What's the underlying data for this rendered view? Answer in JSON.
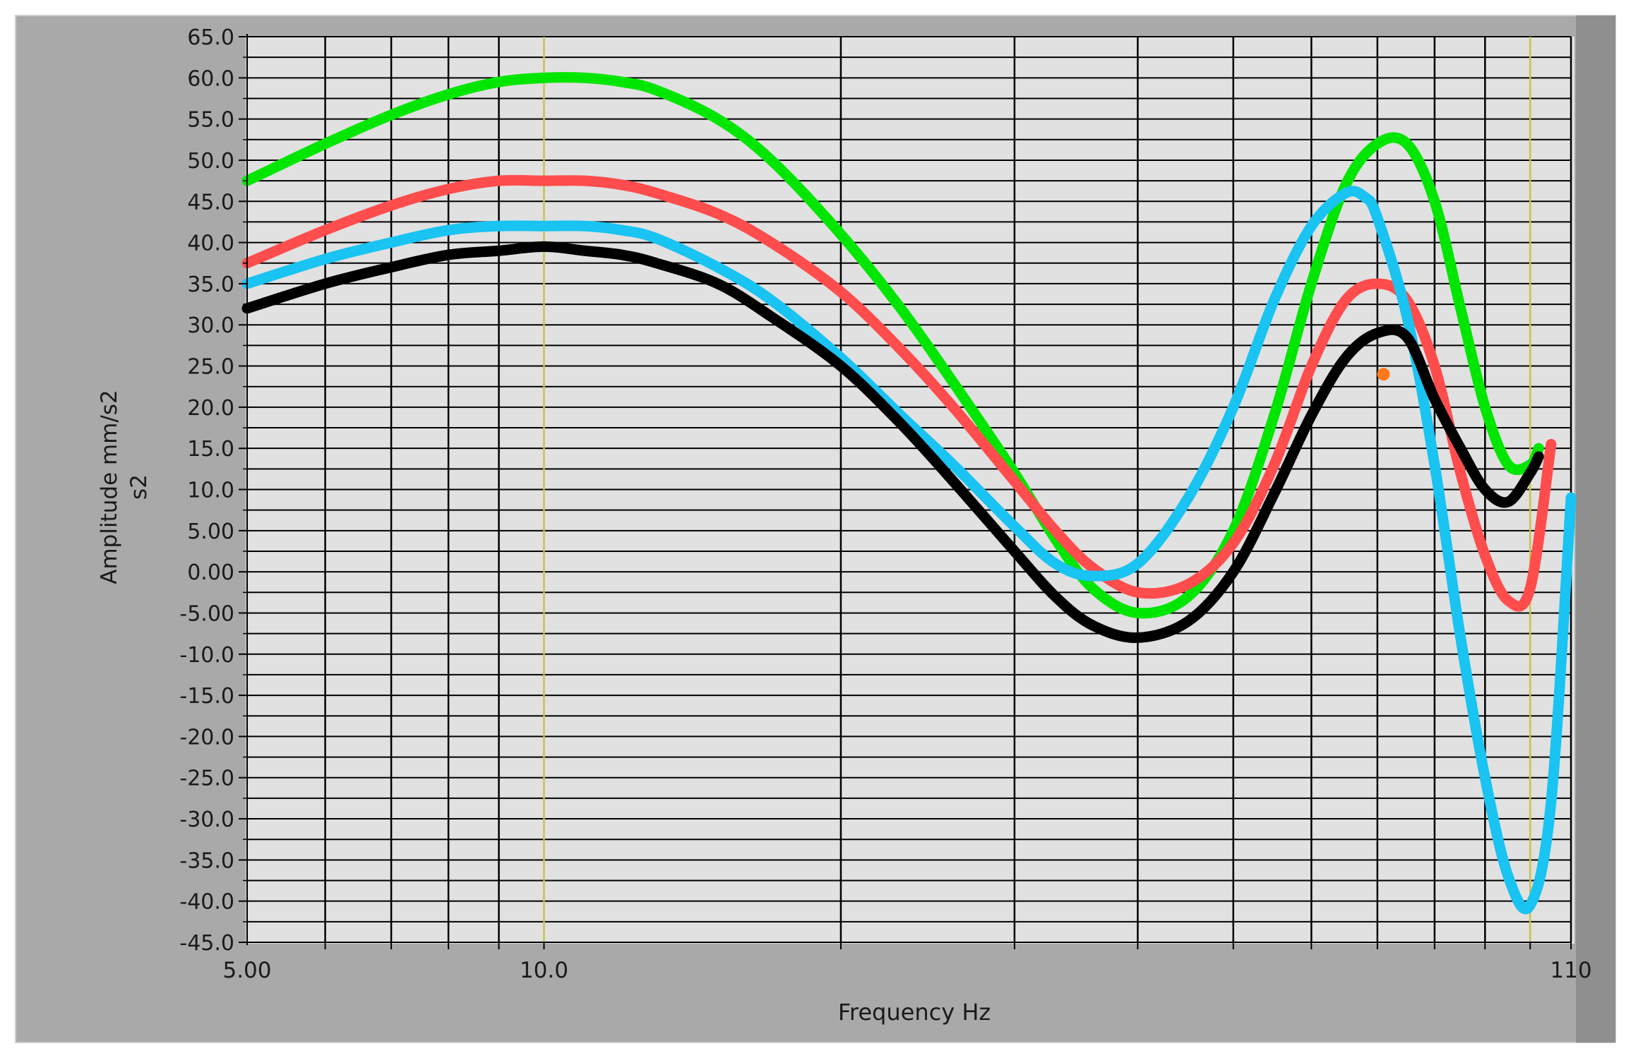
{
  "chart_data": {
    "type": "line",
    "xlabel": "Frequency Hz",
    "ylabel_line1": "Amplitude mm/s2",
    "ylabel_line2": "s2",
    "x_scale": "log",
    "xlim": [
      5,
      110
    ],
    "ylim": [
      -45,
      65
    ],
    "y_ticks": [
      "65.0",
      "60.0",
      "55.0",
      "50.0",
      "45.0",
      "40.0",
      "35.0",
      "30.0",
      "25.0",
      "20.0",
      "15.0",
      "10.0",
      "5.00",
      "0.00",
      "-5.00",
      "-10.0",
      "-15.0",
      "-20.0",
      "-25.0",
      "-30.0",
      "-35.0",
      "-40.0",
      "-45.0"
    ],
    "y_tick_values": [
      65,
      60,
      55,
      50,
      45,
      40,
      35,
      30,
      25,
      20,
      15,
      10,
      5,
      0,
      -5,
      -10,
      -15,
      -20,
      -25,
      -30,
      -35,
      -40,
      -45
    ],
    "x_tick_labels": [
      {
        "value": 5,
        "label": "5.00"
      },
      {
        "value": 10,
        "label": "10.0"
      },
      {
        "value": 110,
        "label": "110"
      }
    ],
    "x_gridlines": [
      6,
      7,
      8,
      9,
      10,
      20,
      30,
      40,
      50,
      60,
      70,
      80,
      90,
      100,
      110
    ],
    "x_highlight_gridlines": [
      10,
      100
    ],
    "grid": true,
    "legend": "none",
    "colors": {
      "plot_bg": "#e1e1e1",
      "frame_bg": "#a9a9a9",
      "grid_major": "#000000",
      "grid_highlight": "#c9c24a",
      "marker": "#ff7a1a"
    },
    "series": [
      {
        "color": "#00e600",
        "x": [
          5,
          6,
          7,
          8,
          9,
          10,
          11,
          12,
          13,
          15,
          17,
          20,
          23,
          26,
          30,
          33,
          36,
          40,
          45,
          50,
          55,
          60,
          65,
          70,
          75,
          80,
          85,
          90,
          95,
          100,
          102
        ],
        "y": [
          47.5,
          52,
          55.5,
          58,
          59.5,
          60,
          60,
          59.5,
          58.5,
          55,
          50,
          41,
          32,
          23,
          12,
          4,
          -2,
          -5,
          -3,
          5,
          19,
          35,
          47,
          52,
          52,
          45,
          32,
          20,
          13,
          13,
          15
        ]
      },
      {
        "color": "#ff4d4d",
        "x": [
          5,
          6,
          7,
          8,
          9,
          10,
          11,
          12,
          13,
          15,
          17,
          20,
          23,
          26,
          30,
          33,
          36,
          40,
          45,
          50,
          55,
          60,
          65,
          70,
          75,
          80,
          85,
          90,
          95,
          100,
          105
        ],
        "y": [
          37.5,
          41.5,
          44.5,
          46.5,
          47.5,
          47.5,
          47.5,
          47,
          46,
          43.5,
          40,
          34,
          27,
          20,
          11,
          5,
          0.5,
          -2.5,
          -1.5,
          3.5,
          13,
          25,
          33,
          35,
          33,
          25,
          12,
          2,
          -3.5,
          -2,
          15.5
        ]
      },
      {
        "color": "#19c3f2",
        "x": [
          5,
          6,
          7,
          8,
          9,
          10,
          11,
          12,
          13,
          15,
          17,
          20,
          23,
          26,
          30,
          33,
          36,
          40,
          45,
          50,
          55,
          60,
          65,
          68,
          70,
          75,
          80,
          85,
          90,
          95,
          100,
          105,
          110
        ],
        "y": [
          35,
          38,
          40,
          41.5,
          42,
          42,
          42,
          41.5,
          40.5,
          37,
          33,
          26,
          19,
          13,
          5.5,
          1,
          -0.5,
          1,
          9,
          20,
          33,
          42,
          46,
          45.5,
          43,
          31,
          13,
          -8,
          -25,
          -37,
          -40.5,
          -28,
          9
        ]
      },
      {
        "color": "#000000",
        "x": [
          5,
          6,
          7,
          8,
          9,
          10,
          11,
          12,
          13,
          15,
          17,
          20,
          23,
          26,
          30,
          33,
          36,
          40,
          45,
          50,
          55,
          60,
          65,
          70,
          75,
          80,
          85,
          90,
          95,
          100,
          102
        ],
        "y": [
          32,
          35,
          37,
          38.5,
          39,
          39.5,
          39,
          38.5,
          37.5,
          35,
          31,
          25,
          18,
          11,
          2.5,
          -3,
          -6.5,
          -8,
          -6,
          0,
          9.5,
          19,
          26,
          29,
          28.5,
          21,
          15,
          10,
          8.5,
          12,
          14
        ]
      }
    ],
    "annotation_point": {
      "x": 71,
      "y": 24
    }
  }
}
